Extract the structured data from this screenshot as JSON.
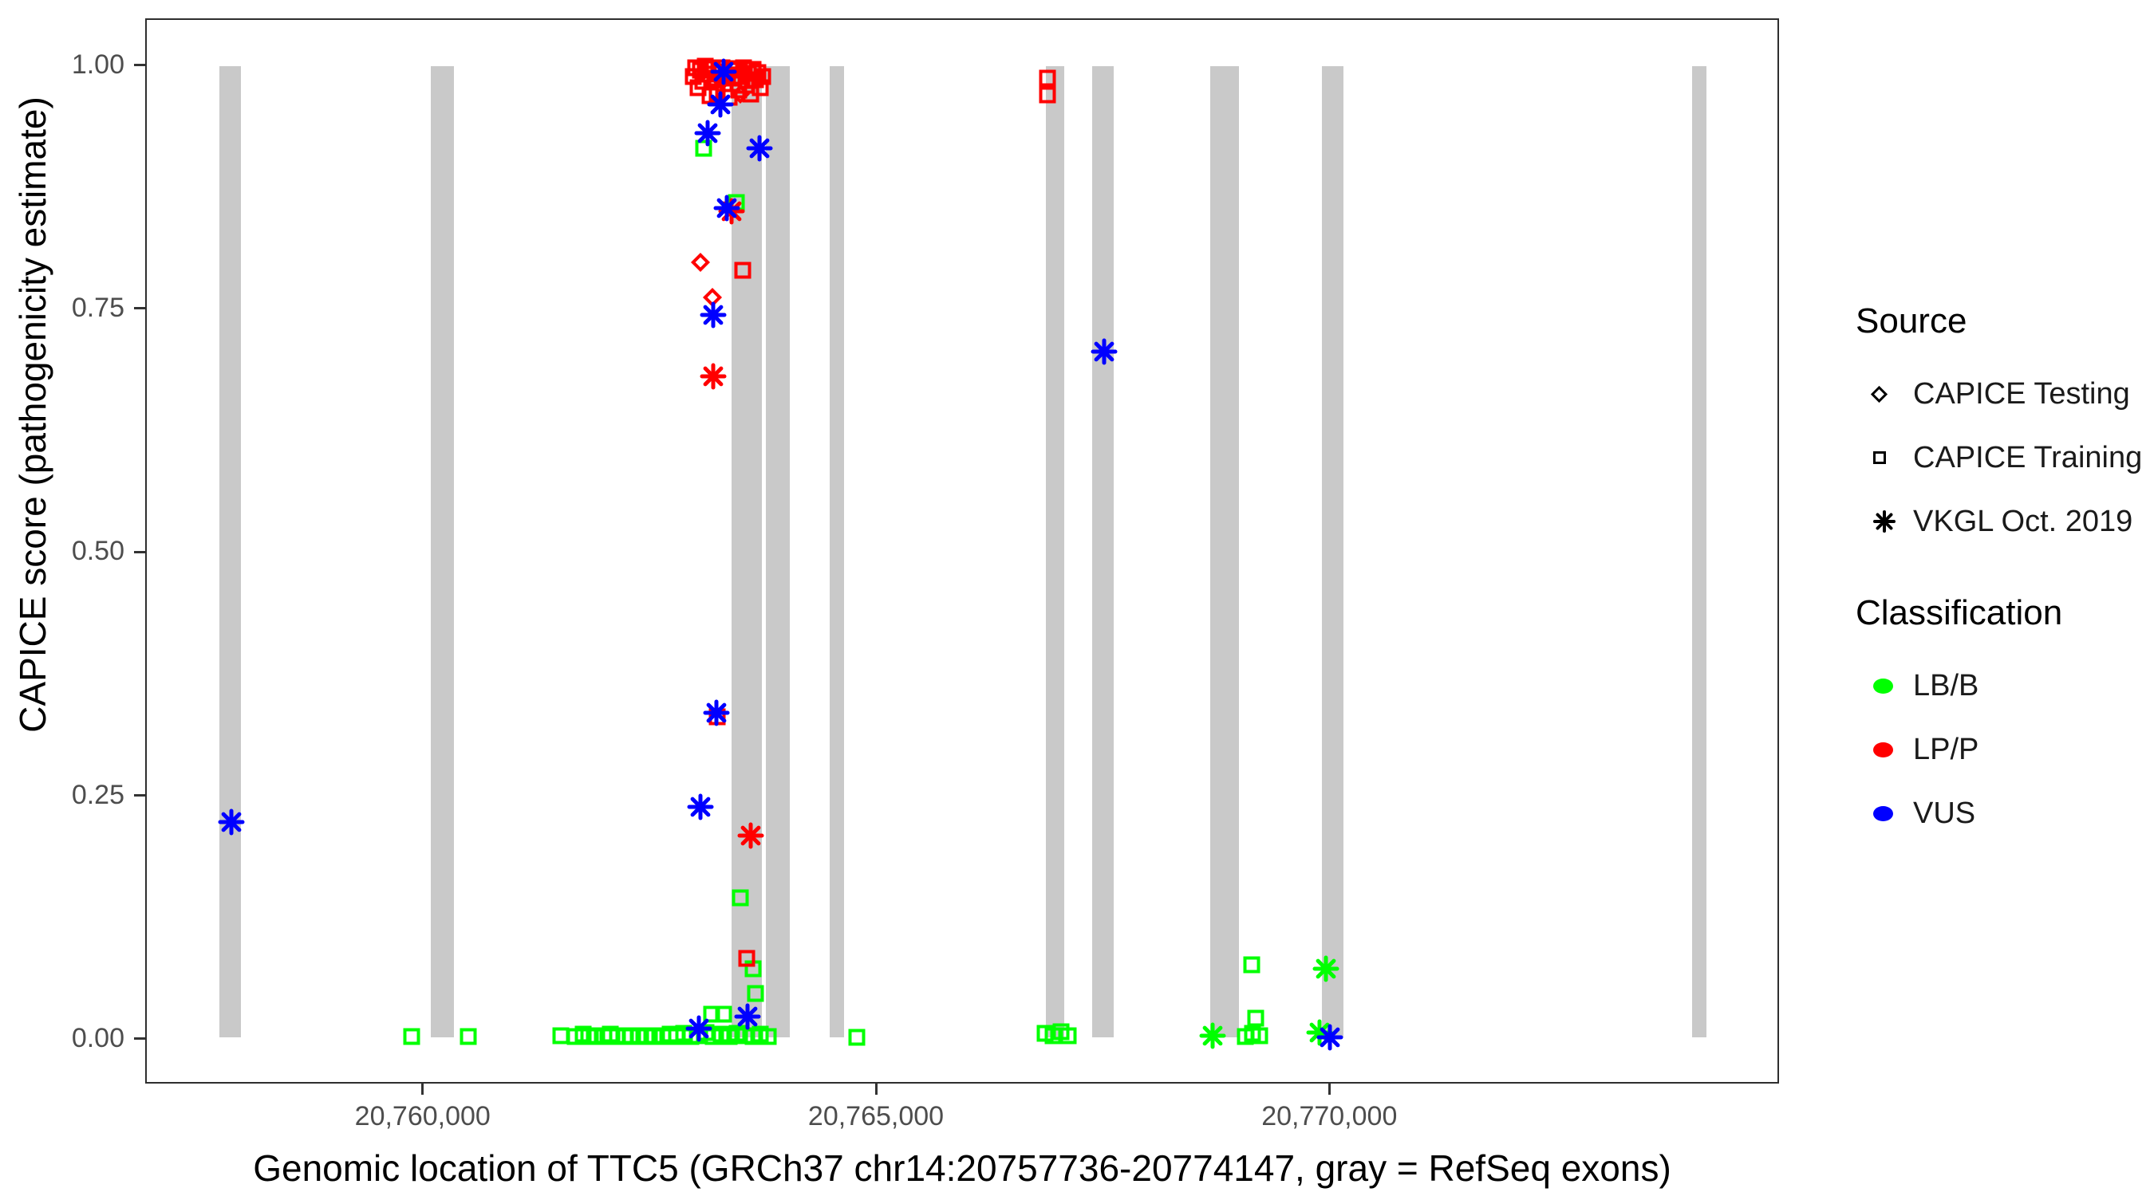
{
  "figure": {
    "background": "#ffffff"
  },
  "axes": {
    "x": {
      "label": "Genomic location of TTC5 (GRCh37 chr14:20757736-20774147, gray = RefSeq exons)",
      "range": [
        20756940,
        20774960
      ],
      "ticks": [
        {
          "pos": 20760000,
          "label": "20,760,000"
        },
        {
          "pos": 20765000,
          "label": "20,765,000"
        },
        {
          "pos": 20770000,
          "label": "20,770,000"
        }
      ]
    },
    "y": {
      "label": "CAPICE score (pathogenicity estimate)",
      "range": [
        -0.046,
        1.048
      ],
      "ticks": [
        {
          "v": 0.0,
          "label": "0.00"
        },
        {
          "v": 0.25,
          "label": "0.25"
        },
        {
          "v": 0.5,
          "label": "0.50"
        },
        {
          "v": 0.75,
          "label": "0.75"
        },
        {
          "v": 1.0,
          "label": "1.00"
        }
      ]
    }
  },
  "legend": {
    "source": {
      "title": "Source",
      "items": [
        {
          "label": "CAPICE Testing",
          "marker": "diamond"
        },
        {
          "label": "CAPICE Training",
          "marker": "square"
        },
        {
          "label": "VKGL Oct. 2019",
          "marker": "asterisk"
        }
      ]
    },
    "classification": {
      "title": "Classification",
      "items": [
        {
          "label": "LB/B",
          "color": "#00ff00"
        },
        {
          "label": "LP/P",
          "color": "#ff0000"
        },
        {
          "label": "VUS",
          "color": "#0000ff"
        }
      ]
    }
  },
  "colors": {
    "LB/B": "#00ff00",
    "LP/P": "#ff0000",
    "VUS": "#0000ff",
    "exon_gray": "#c9c9c9",
    "panel_border": "#2e2e2e"
  },
  "chart_data": {
    "type": "scatter",
    "xlabel": "Genomic location of TTC5 (GRCh37 chr14:20757736-20774147, gray = RefSeq exons)",
    "ylabel": "CAPICE score (pathogenicity estimate)",
    "xlim": [
      20756940,
      20774960
    ],
    "ylim": [
      -0.046,
      1.048
    ],
    "grid": false,
    "legend_position": "right",
    "shape_by": "Source",
    "color_by": "Classification",
    "shapes": {
      "CAPICE Testing": "diamond",
      "CAPICE Training": "square",
      "VKGL Oct. 2019": "asterisk"
    },
    "exons_note": "gray vertical bars = RefSeq exons, drawn from score 0 to 1",
    "exons": [
      [
        20757738,
        20757976
      ],
      [
        20760079,
        20760334
      ],
      [
        20763406,
        20763740
      ],
      [
        20763784,
        20764048
      ],
      [
        20764488,
        20764646
      ],
      [
        20766873,
        20767075
      ],
      [
        20767383,
        20767621
      ],
      [
        20768694,
        20769011
      ],
      [
        20769926,
        20770164
      ],
      [
        20774018,
        20774177
      ]
    ],
    "points_format": [
      "genomic_position",
      "capice_score",
      "source",
      "classification"
    ],
    "points": [
      [
        20757875,
        0.222,
        "VKGL Oct. 2019",
        "VUS"
      ],
      [
        20759870,
        0.001,
        "CAPICE Training",
        "LB/B"
      ],
      [
        20760497,
        0.001,
        "CAPICE Training",
        "LB/B"
      ],
      [
        20761516,
        0.002,
        "CAPICE Training",
        "LB/B"
      ],
      [
        20761672,
        0.001,
        "CAPICE Training",
        "LB/B"
      ],
      [
        20761760,
        0.003,
        "CAPICE Training",
        "LB/B"
      ],
      [
        20761821,
        0.001,
        "CAPICE Training",
        "LB/B"
      ],
      [
        20761890,
        0.002,
        "CAPICE Training",
        "LB/B"
      ],
      [
        20761995,
        0.001,
        "CAPICE Training",
        "LB/B"
      ],
      [
        20762065,
        0.003,
        "CAPICE Training",
        "LB/B"
      ],
      [
        20762143,
        0.001,
        "CAPICE Training",
        "LB/B"
      ],
      [
        20762230,
        0.002,
        "CAPICE Training",
        "LB/B"
      ],
      [
        20762282,
        0.001,
        "CAPICE Training",
        "LB/B"
      ],
      [
        20762369,
        0.002,
        "CAPICE Training",
        "LB/B"
      ],
      [
        20762456,
        0.001,
        "CAPICE Training",
        "LB/B"
      ],
      [
        20762544,
        0.002,
        "CAPICE Training",
        "LB/B"
      ],
      [
        20762640,
        0.001,
        "CAPICE Training",
        "LB/B"
      ],
      [
        20762719,
        0.003,
        "CAPICE Training",
        "LB/B"
      ],
      [
        20762798,
        0.001,
        "CAPICE Training",
        "LB/B"
      ],
      [
        20762877,
        0.004,
        "CAPICE Training",
        "LB/B"
      ],
      [
        20762956,
        0.001,
        "CAPICE Training",
        "LB/B"
      ],
      [
        20763035,
        0.002,
        "CAPICE Training",
        "LB/B"
      ],
      [
        20763123,
        0.005,
        "CAPICE Training",
        "LB/B"
      ],
      [
        20763186,
        0.024,
        "CAPICE Training",
        "LB/B"
      ],
      [
        20763202,
        0.001,
        "CAPICE Training",
        "LB/B"
      ],
      [
        20763290,
        0.003,
        "CAPICE Training",
        "LB/B"
      ],
      [
        20763318,
        0.024,
        "CAPICE Training",
        "LB/B"
      ],
      [
        20763378,
        0.001,
        "CAPICE Training",
        "LB/B"
      ],
      [
        20763467,
        0.004,
        "CAPICE Training",
        "LB/B"
      ],
      [
        20763555,
        0.002,
        "CAPICE Training",
        "LB/B"
      ],
      [
        20763643,
        0.001,
        "CAPICE Training",
        "LB/B"
      ],
      [
        20763722,
        0.003,
        "CAPICE Training",
        "LB/B"
      ],
      [
        20763810,
        0.001,
        "CAPICE Training",
        "LB/B"
      ],
      [
        20763670,
        0.045,
        "CAPICE Training",
        "LB/B"
      ],
      [
        20763642,
        0.071,
        "CAPICE Training",
        "LB/B"
      ],
      [
        20763502,
        0.144,
        "CAPICE Training",
        "LB/B"
      ],
      [
        20764782,
        0.0,
        "CAPICE Training",
        "LB/B"
      ],
      [
        20763098,
        0.916,
        "CAPICE Training",
        "LB/B"
      ],
      [
        20763459,
        0.86,
        "CAPICE Training",
        "LB/B"
      ],
      [
        20763045,
        0.009,
        "VKGL Oct. 2019",
        "VUS"
      ],
      [
        20763582,
        0.021,
        "VKGL Oct. 2019",
        "VUS"
      ],
      [
        20762980,
        0.99,
        "CAPICE Training",
        "LP/P"
      ],
      [
        20763007,
        0.999,
        "CAPICE Training",
        "LP/P"
      ],
      [
        20763033,
        0.978,
        "CAPICE Training",
        "LP/P"
      ],
      [
        20763060,
        0.996,
        "CAPICE Training",
        "LP/P"
      ],
      [
        20763086,
        0.985,
        "CAPICE Training",
        "LP/P"
      ],
      [
        20763113,
        1.0,
        "CAPICE Training",
        "LP/P"
      ],
      [
        20763139,
        0.992,
        "CAPICE Training",
        "LP/P"
      ],
      [
        20763166,
        0.97,
        "CAPICE Training",
        "LP/P"
      ],
      [
        20763192,
        0.998,
        "CAPICE Training",
        "LP/P"
      ],
      [
        20763219,
        0.988,
        "CAPICE Training",
        "LP/P"
      ],
      [
        20763245,
        0.973,
        "CAPICE Training",
        "LP/P"
      ],
      [
        20763271,
        0.995,
        "CAPICE Training",
        "LP/P"
      ],
      [
        20763298,
        0.999,
        "CAPICE Training",
        "LP/P"
      ],
      [
        20763324,
        0.982,
        "CAPICE Training",
        "LP/P"
      ],
      [
        20763351,
        0.991,
        "CAPICE Training",
        "LP/P"
      ],
      [
        20763377,
        0.968,
        "CAPICE Training",
        "LP/P"
      ],
      [
        20763404,
        0.998,
        "CAPICE Training",
        "LP/P"
      ],
      [
        20763430,
        0.988,
        "CAPICE Training",
        "LP/P"
      ],
      [
        20763457,
        0.996,
        "CAPICE Training",
        "LP/P"
      ],
      [
        20763483,
        0.976,
        "CAPICE Training",
        "LP/P"
      ],
      [
        20763510,
        0.99,
        "CAPICE Training",
        "LP/P"
      ],
      [
        20763536,
        0.999,
        "CAPICE Training",
        "LP/P"
      ],
      [
        20763563,
        0.981,
        "CAPICE Training",
        "LP/P"
      ],
      [
        20763589,
        0.993,
        "CAPICE Training",
        "LP/P"
      ],
      [
        20763616,
        0.972,
        "CAPICE Training",
        "LP/P"
      ],
      [
        20763642,
        0.997,
        "CAPICE Training",
        "LP/P"
      ],
      [
        20763669,
        0.986,
        "CAPICE Training",
        "LP/P"
      ],
      [
        20763695,
        0.994,
        "CAPICE Training",
        "LP/P"
      ],
      [
        20763722,
        0.978,
        "CAPICE Training",
        "LP/P"
      ],
      [
        20763748,
        0.99,
        "CAPICE Training",
        "LP/P"
      ],
      [
        20763060,
        0.992,
        "CAPICE Testing",
        "LP/P"
      ],
      [
        20763300,
        0.985,
        "CAPICE Testing",
        "LP/P"
      ],
      [
        20763500,
        0.972,
        "CAPICE Testing",
        "LP/P"
      ],
      [
        20763062,
        0.798,
        "CAPICE Testing",
        "LP/P"
      ],
      [
        20763194,
        0.762,
        "CAPICE Testing",
        "LP/P"
      ],
      [
        20763310,
        0.995,
        "VKGL Oct. 2019",
        "VUS"
      ],
      [
        20763280,
        0.961,
        "VKGL Oct. 2019",
        "VUS"
      ],
      [
        20763142,
        0.931,
        "VKGL Oct. 2019",
        "VUS"
      ],
      [
        20763714,
        0.916,
        "VKGL Oct. 2019",
        "VUS"
      ],
      [
        20763345,
        0.854,
        "VKGL Oct. 2019",
        "VUS"
      ],
      [
        20763203,
        0.744,
        "VKGL Oct. 2019",
        "VUS"
      ],
      [
        20763238,
        0.334,
        "VKGL Oct. 2019",
        "VUS"
      ],
      [
        20763062,
        0.237,
        "VKGL Oct. 2019",
        "VUS"
      ],
      [
        20763406,
        0.851,
        "VKGL Oct. 2019",
        "LP/P"
      ],
      [
        20763203,
        0.681,
        "VKGL Oct. 2019",
        "LP/P"
      ],
      [
        20763617,
        0.208,
        "VKGL Oct. 2019",
        "LP/P"
      ],
      [
        20763529,
        0.79,
        "CAPICE Training",
        "LP/P"
      ],
      [
        20763245,
        0.33,
        "CAPICE Training",
        "LP/P"
      ],
      [
        20763573,
        0.081,
        "CAPICE Training",
        "LP/P"
      ],
      [
        20766890,
        0.988,
        "CAPICE Training",
        "LP/P"
      ],
      [
        20766890,
        0.971,
        "CAPICE Training",
        "LP/P"
      ],
      [
        20767515,
        0.706,
        "VKGL Oct. 2019",
        "VUS"
      ],
      [
        20766864,
        0.004,
        "CAPICE Training",
        "LB/B"
      ],
      [
        20766952,
        0.002,
        "CAPICE Training",
        "LB/B"
      ],
      [
        20767040,
        0.006,
        "CAPICE Training",
        "LB/B"
      ],
      [
        20767119,
        0.002,
        "CAPICE Training",
        "LB/B"
      ],
      [
        20768721,
        0.002,
        "VKGL Oct. 2019",
        "LB/B"
      ],
      [
        20769152,
        0.075,
        "CAPICE Training",
        "LB/B"
      ],
      [
        20769196,
        0.02,
        "CAPICE Training",
        "LB/B"
      ],
      [
        20769082,
        0.001,
        "CAPICE Training",
        "LB/B"
      ],
      [
        20769161,
        0.004,
        "CAPICE Training",
        "LB/B"
      ],
      [
        20769240,
        0.002,
        "CAPICE Training",
        "LB/B"
      ],
      [
        20769900,
        0.005,
        "VKGL Oct. 2019",
        "LB/B"
      ],
      [
        20769970,
        0.071,
        "VKGL Oct. 2019",
        "LB/B"
      ],
      [
        20770010,
        0.0,
        "VKGL Oct. 2019",
        "VUS"
      ]
    ]
  }
}
